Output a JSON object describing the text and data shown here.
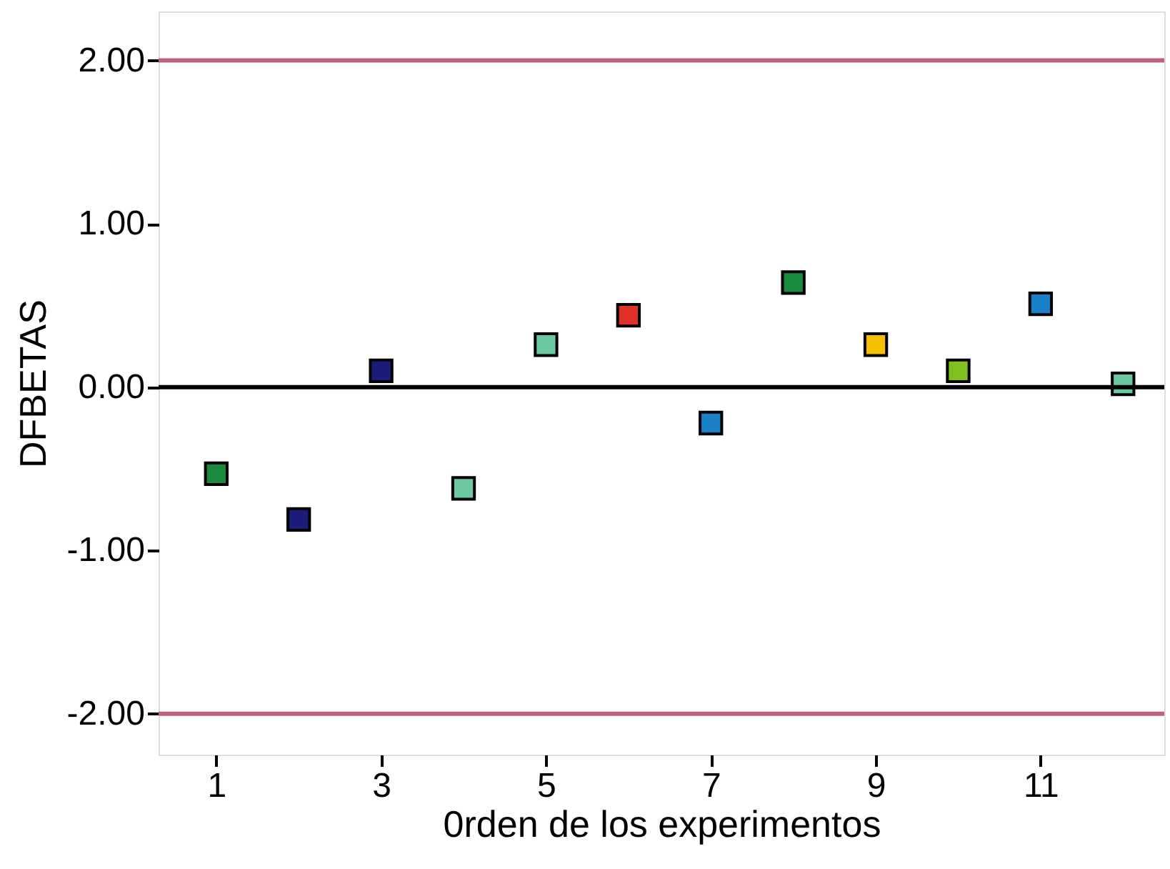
{
  "chart_data": {
    "type": "scatter",
    "xlabel": "0rden de los experimentos",
    "ylabel": "DFBETAS",
    "x": [
      1,
      2,
      3,
      4,
      5,
      6,
      7,
      8,
      9,
      10,
      11,
      12
    ],
    "values": [
      -0.53,
      -0.81,
      0.1,
      -0.62,
      0.26,
      0.44,
      -0.22,
      0.64,
      0.26,
      0.1,
      0.51,
      0.02
    ],
    "colors": [
      "#1a8a3c",
      "#1c1c7a",
      "#1c1c7a",
      "#6cc8a0",
      "#6cc8a0",
      "#e0302a",
      "#1a80c8",
      "#1a8a3c",
      "#f5c000",
      "#80c020",
      "#1a80c8",
      "#6cc8a0"
    ],
    "marker": "square",
    "xlim": [
      0.3,
      12.5
    ],
    "xticks": [
      1,
      3,
      5,
      7,
      9,
      11
    ],
    "ylim": [
      -2.25,
      2.3
    ],
    "yticks": [
      {
        "value": -2,
        "label": "-2.00"
      },
      {
        "value": -1,
        "label": "-1.00"
      },
      {
        "value": 0,
        "label": "0.00"
      },
      {
        "value": 1,
        "label": "1.00"
      },
      {
        "value": 2,
        "label": "2.00"
      }
    ],
    "ref_lines": [
      {
        "axis": "y",
        "value": 2,
        "label": null,
        "color": "#c06080"
      },
      {
        "axis": "y",
        "value": -2,
        "label": null,
        "color": "#c06080"
      },
      {
        "axis": "y",
        "value": 0,
        "label": null,
        "color": "#000000"
      }
    ],
    "grid": false
  }
}
